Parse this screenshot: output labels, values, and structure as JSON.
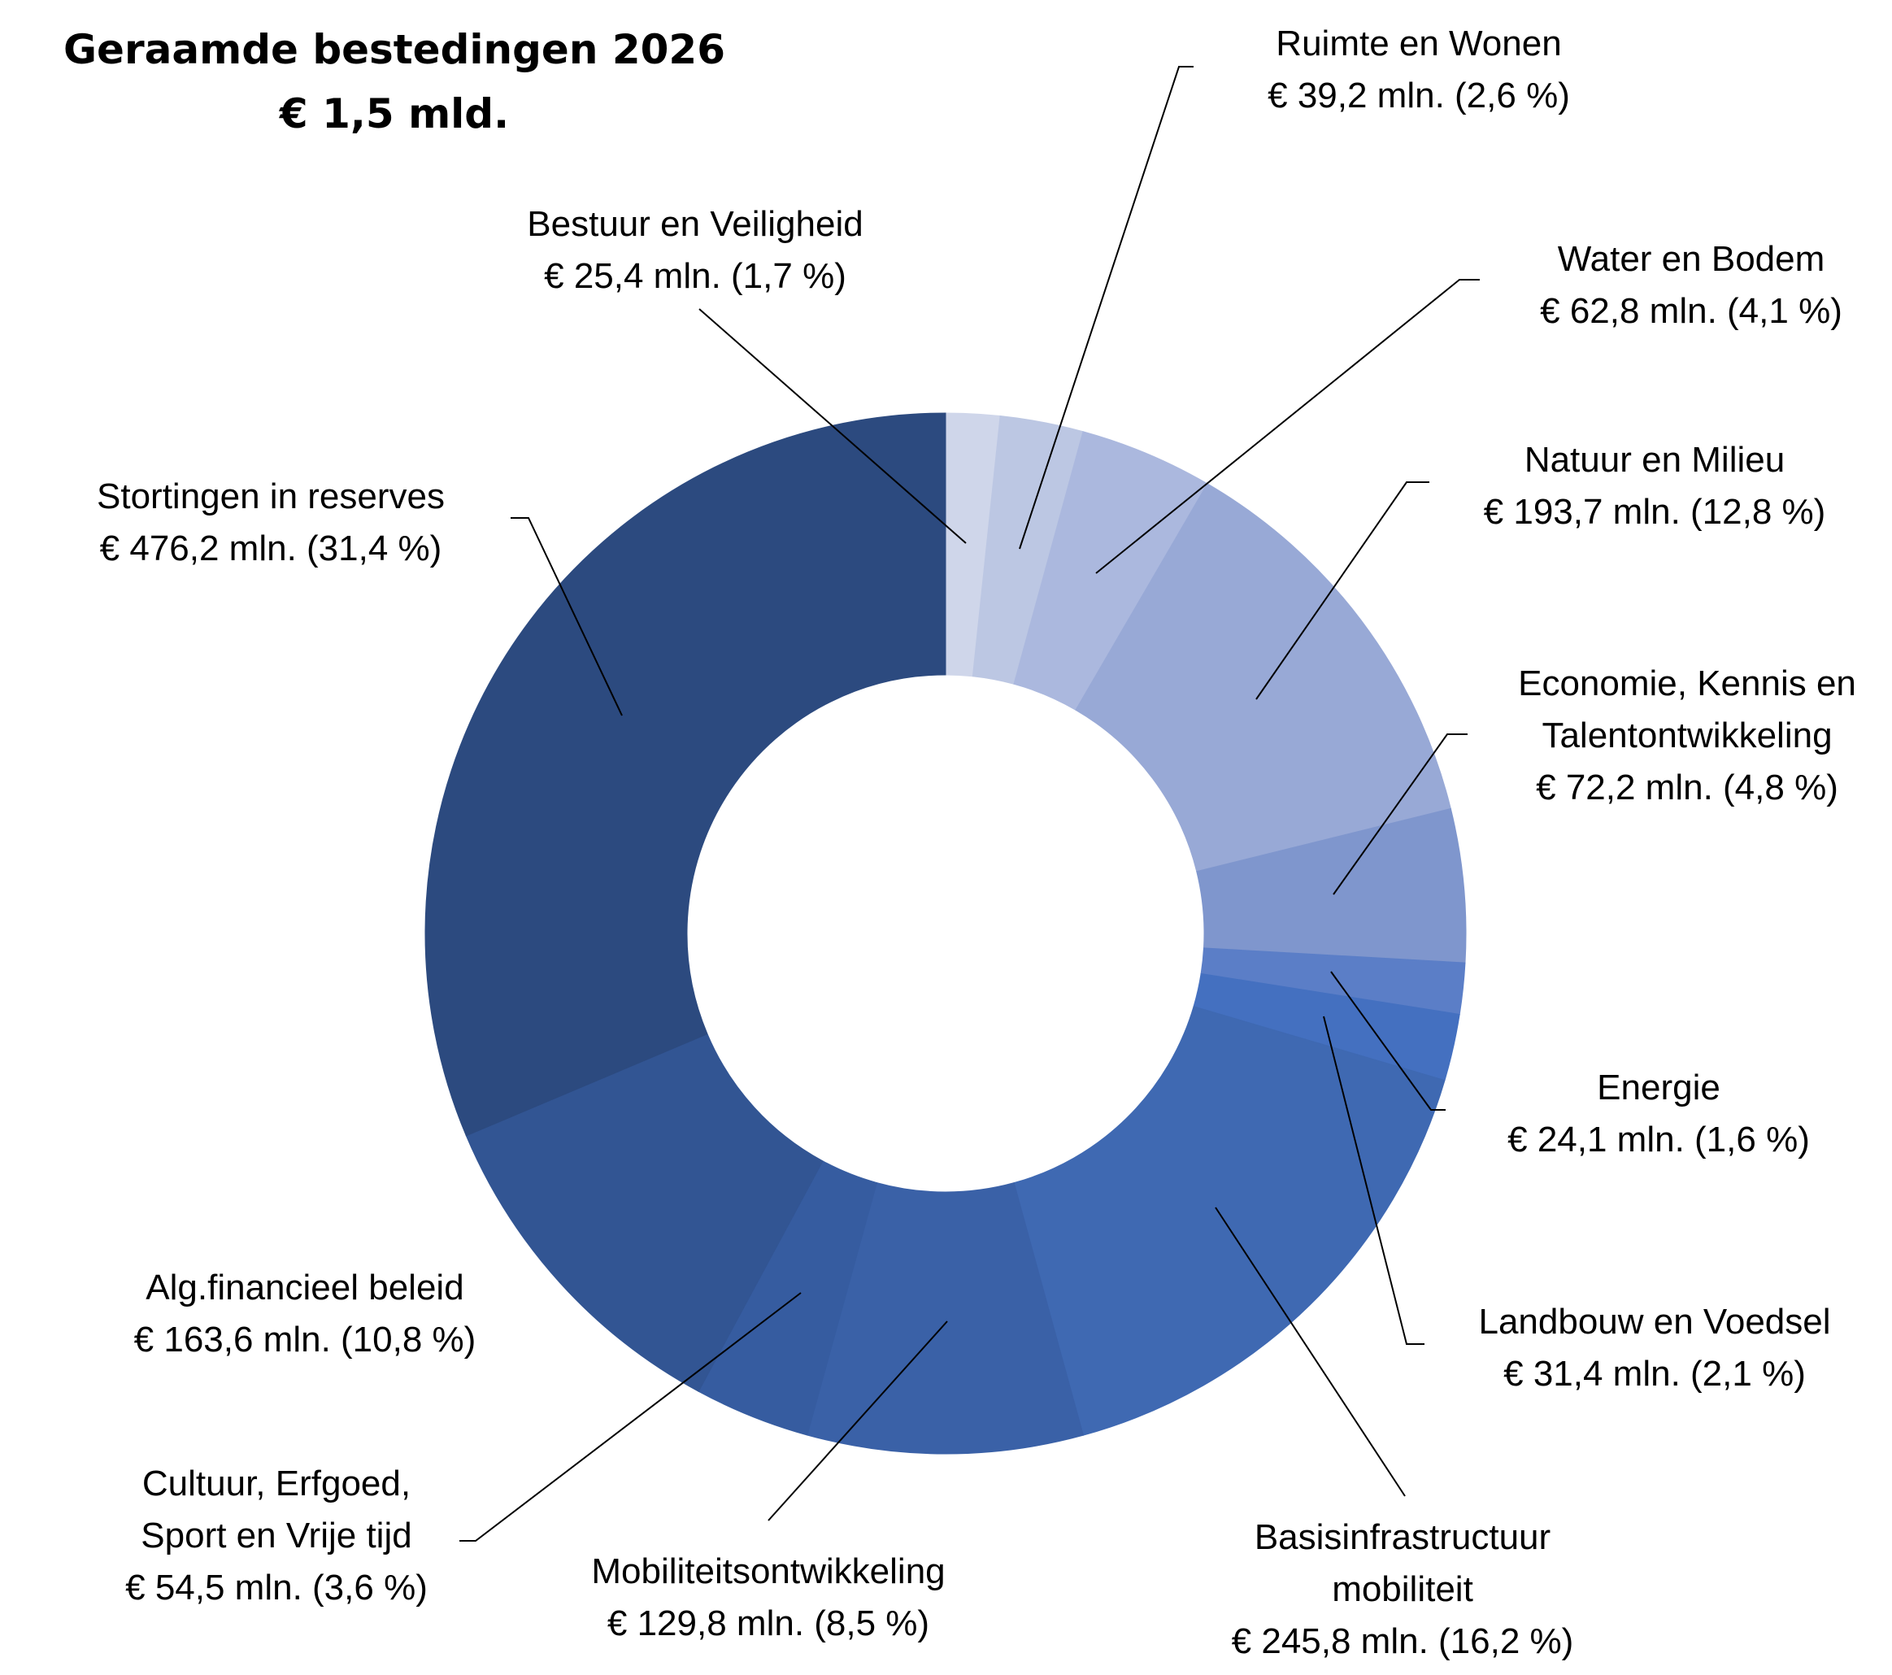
{
  "chart_data": {
    "type": "pie",
    "donut": true,
    "title": "Geraamde bestedingen 2026",
    "subtitle": "€ 1,5 mld.",
    "unit": "mln.",
    "slices": [
      {
        "label": "Bestuur en Veiligheid",
        "value": 25.4,
        "amount": "€ 25,4 mln. (1,7 %)",
        "color": "#cfd6ea"
      },
      {
        "label": "Ruimte en Wonen",
        "value": 39.2,
        "amount": "€ 39,2 mln. (2,6 %)",
        "color": "#bcc7e3"
      },
      {
        "label": "Water en Bodem",
        "value": 62.8,
        "amount": "€ 62,8 mln. (4,1 %)",
        "color": "#abb8de"
      },
      {
        "label": "Natuur  en  Milieu",
        "value": 193.7,
        "amount": "€ 193,7 mln. (12,8 %)",
        "color": "#98a9d6"
      },
      {
        "label": "Economie, Kennis en Talentontwikkeling",
        "label_lines": [
          "Economie, Kennis en",
          "Talentontwikkeling"
        ],
        "value": 72.2,
        "amount": "€ 72,2 mln. (4,8 %)",
        "color": "#7f96cd"
      },
      {
        "label": "Energie",
        "value": 24.1,
        "amount": "€ 24,1 mln. (1,6 %)",
        "color": "#5b7ec7"
      },
      {
        "label": "Landbouw en Voedsel",
        "value": 31.4,
        "amount": "€ 31,4 mln. (2,1 %)",
        "color": "#4470c0"
      },
      {
        "label": "Basisinfrastructuur mobiliteit",
        "label_lines": [
          "Basisinfrastructuur",
          "mobiliteit"
        ],
        "value": 245.8,
        "amount": "€ 245,8 mln. (16,2 %)",
        "color": "#3f69b2"
      },
      {
        "label": "Mobiliteitsontwikkeling",
        "value": 129.8,
        "amount": "€ 129,8 mln. (8,5 %)",
        "color": "#3a61a7"
      },
      {
        "label": "Cultuur, Erfgoed, Sport en Vrije tijd",
        "label_lines": [
          "Cultuur, Erfgoed,",
          "Sport en Vrije tijd"
        ],
        "value": 54.5,
        "amount": "€ 54,5 mln. (3,6 %)",
        "color": "#365ca0"
      },
      {
        "label": "Alg.financieel beleid",
        "value": 163.6,
        "amount": "€ 163,6 mln. (10,8 %)",
        "color": "#325593"
      },
      {
        "label": "Stortingen in reserves",
        "value": 476.2,
        "amount": "€ 476,2 mln. (31,4 %)",
        "color": "#2c4a7f"
      }
    ]
  }
}
